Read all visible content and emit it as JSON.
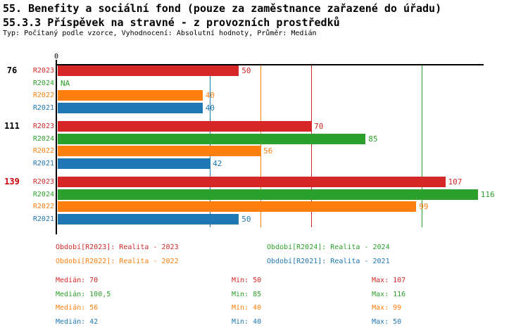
{
  "header": {
    "title1": "55. Benefity a sociální fond (pouze za zaměstnance zařazené do úřadu)",
    "title2": "55.3.3 Příspěvek na stravné - z provozních prostředků",
    "meta": "Typ: Počítaný podle vzorce, Vyhodnocení: Absolutní hodnoty, Průměr: Medián"
  },
  "colors": {
    "R2023": "#d62728",
    "R2024": "#2ca02c",
    "R2022": "#ff7f0e",
    "R2021": "#1f77b4",
    "highlight_group_label": "#cc0000",
    "axis": "#000000"
  },
  "chart_data": {
    "type": "bar",
    "orientation": "horizontal",
    "x_origin_label": "0",
    "x_range": [
      0,
      117.6
    ],
    "grid": "off",
    "series_order": [
      "R2023",
      "R2024",
      "R2022",
      "R2021"
    ],
    "categories": [
      "76",
      "111",
      "139"
    ],
    "groups": [
      {
        "label": "76",
        "label_color": "#000000",
        "bars": [
          {
            "series": "R2023",
            "value": 50,
            "label": "50"
          },
          {
            "series": "R2024",
            "value": null,
            "label": "NA"
          },
          {
            "series": "R2022",
            "value": 40,
            "label": "40"
          },
          {
            "series": "R2021",
            "value": 40,
            "label": "40"
          }
        ]
      },
      {
        "label": "111",
        "label_color": "#000000",
        "bars": [
          {
            "series": "R2023",
            "value": 70,
            "label": "70"
          },
          {
            "series": "R2024",
            "value": 85,
            "label": "85"
          },
          {
            "series": "R2022",
            "value": 56,
            "label": "56"
          },
          {
            "series": "R2021",
            "value": 42,
            "label": "42"
          }
        ]
      },
      {
        "label": "139",
        "label_color": "#cc0000",
        "bars": [
          {
            "series": "R2023",
            "value": 107,
            "label": "107"
          },
          {
            "series": "R2024",
            "value": 116,
            "label": "116"
          },
          {
            "series": "R2022",
            "value": 99,
            "label": "99"
          },
          {
            "series": "R2021",
            "value": 50,
            "label": "50"
          }
        ]
      }
    ],
    "median_lines": [
      {
        "series": "R2023",
        "value": 70
      },
      {
        "series": "R2024",
        "value": 100.5
      },
      {
        "series": "R2022",
        "value": 56
      },
      {
        "series": "R2021",
        "value": 42
      }
    ]
  },
  "legend": [
    {
      "series": "R2023",
      "text": "Období[R2023]: Realita - 2023"
    },
    {
      "series": "R2024",
      "text": "Období[R2024]: Realita - 2024"
    },
    {
      "series": "R2022",
      "text": "Období[R2022]: Realita - 2022"
    },
    {
      "series": "R2021",
      "text": "Období[R2021]: Realita - 2021"
    }
  ],
  "stats": [
    {
      "series": "R2023",
      "median": "Medián: 70",
      "min": "Min: 50",
      "max": "Max: 107"
    },
    {
      "series": "R2024",
      "median": "Medián: 100,5",
      "min": "Min: 85",
      "max": "Max: 116"
    },
    {
      "series": "R2022",
      "median": "Medián: 56",
      "min": "Min: 40",
      "max": "Max: 99"
    },
    {
      "series": "R2021",
      "median": "Medián: 42",
      "min": "Min: 40",
      "max": "Max: 50"
    }
  ]
}
